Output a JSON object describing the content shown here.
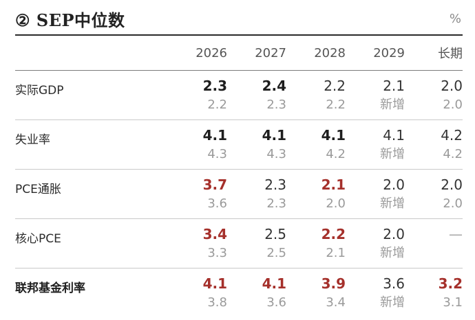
{
  "header": {
    "title": "② SEP中位数",
    "unit": "%"
  },
  "columns": [
    "2026",
    "2027",
    "2028",
    "2029",
    "长期"
  ],
  "rows": [
    {
      "label": "实际GDP",
      "strong": false,
      "main": [
        {
          "text": "2.3",
          "style": "bold"
        },
        {
          "text": "2.4",
          "style": "bold"
        },
        {
          "text": "2.2",
          "style": "normal"
        },
        {
          "text": "2.1",
          "style": "normal"
        },
        {
          "text": "2.0",
          "style": "normal"
        }
      ],
      "prev": [
        "2.2",
        "2.3",
        "2.2",
        "新增",
        "2.0"
      ]
    },
    {
      "label": "失业率",
      "strong": false,
      "main": [
        {
          "text": "4.1",
          "style": "bold"
        },
        {
          "text": "4.1",
          "style": "bold"
        },
        {
          "text": "4.1",
          "style": "bold"
        },
        {
          "text": "4.1",
          "style": "normal"
        },
        {
          "text": "4.2",
          "style": "normal"
        }
      ],
      "prev": [
        "4.3",
        "4.3",
        "4.2",
        "新增",
        "4.2"
      ]
    },
    {
      "label": "PCE通胀",
      "strong": false,
      "main": [
        {
          "text": "3.7",
          "style": "red"
        },
        {
          "text": "2.3",
          "style": "normal"
        },
        {
          "text": "2.1",
          "style": "red"
        },
        {
          "text": "2.0",
          "style": "normal"
        },
        {
          "text": "2.0",
          "style": "normal"
        }
      ],
      "prev": [
        "3.6",
        "2.3",
        "2.0",
        "新增",
        "2.0"
      ]
    },
    {
      "label": "核心PCE",
      "strong": false,
      "main": [
        {
          "text": "3.4",
          "style": "red"
        },
        {
          "text": "2.5",
          "style": "normal"
        },
        {
          "text": "2.2",
          "style": "red"
        },
        {
          "text": "2.0",
          "style": "normal"
        },
        {
          "text": "—",
          "style": "dash"
        }
      ],
      "prev": [
        "3.3",
        "2.5",
        "2.1",
        "新增",
        ""
      ]
    },
    {
      "label": "联邦基金利率",
      "strong": true,
      "main": [
        {
          "text": "4.1",
          "style": "red"
        },
        {
          "text": "4.1",
          "style": "red"
        },
        {
          "text": "3.9",
          "style": "red"
        },
        {
          "text": "3.6",
          "style": "normal"
        },
        {
          "text": "3.2",
          "style": "red"
        }
      ],
      "prev": [
        "3.8",
        "3.6",
        "3.4",
        "新增",
        "3.1"
      ]
    }
  ],
  "colors": {
    "highlight_red": "#a5302b",
    "previous_gray": "#9a9a9a",
    "rule_dark": "#2a2a2a"
  }
}
